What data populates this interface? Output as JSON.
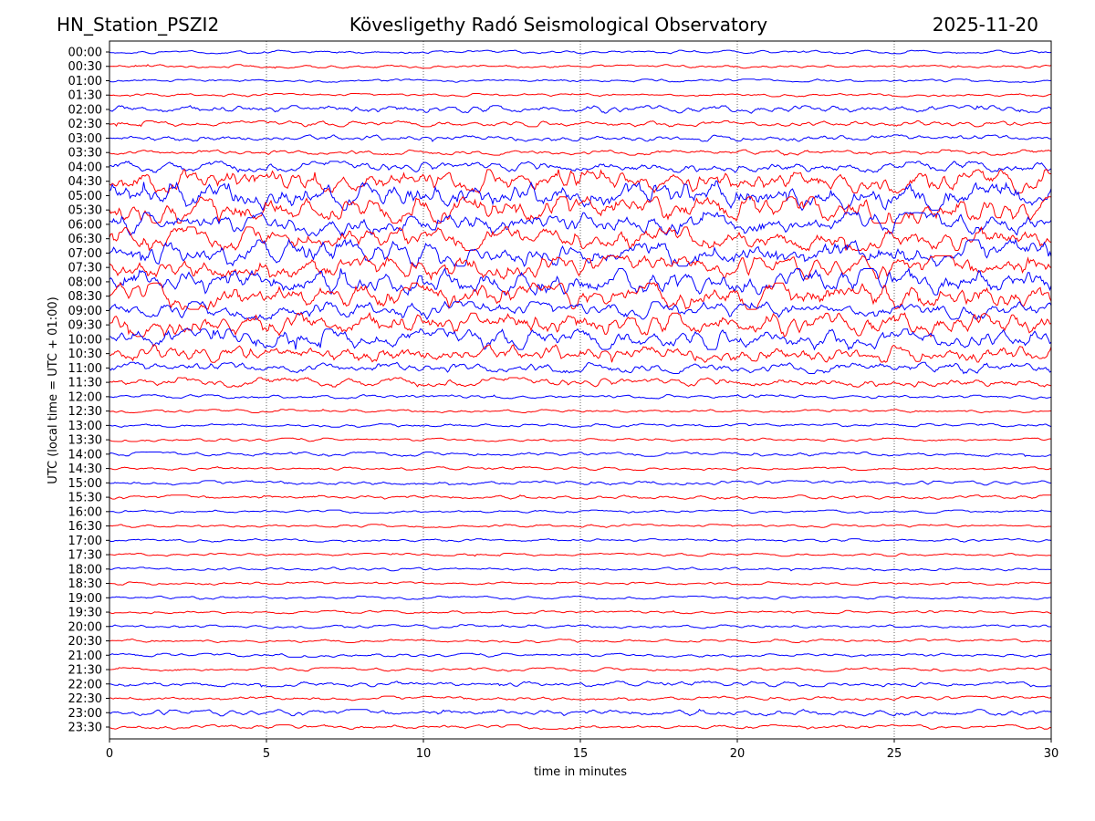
{
  "header": {
    "station": "HN_Station_PSZI2",
    "observatory": "Kövesligethy Radó Seismological Observatory",
    "date": "2025-11-20"
  },
  "chart_data": {
    "type": "line",
    "title": "Kövesligethy Radó Seismological Observatory",
    "xlabel": "time in minutes",
    "ylabel": "UTC (local time = UTC + 01:00)",
    "xlim": [
      0,
      30
    ],
    "xticks": [
      "0",
      "5",
      "10",
      "15",
      "20",
      "25",
      "30"
    ],
    "grid": "vertical dotted at 5-minute intervals",
    "series_colors": [
      "#0000ff",
      "#ff0000"
    ],
    "rows": [
      "00:00",
      "00:30",
      "01:00",
      "01:30",
      "02:00",
      "02:30",
      "03:00",
      "03:30",
      "04:00",
      "04:30",
      "05:00",
      "05:30",
      "06:00",
      "06:30",
      "07:00",
      "07:30",
      "08:00",
      "08:30",
      "09:00",
      "09:30",
      "10:00",
      "10:30",
      "11:00",
      "11:30",
      "12:00",
      "12:30",
      "13:00",
      "13:30",
      "14:00",
      "14:30",
      "15:00",
      "15:30",
      "16:00",
      "16:30",
      "17:00",
      "17:30",
      "18:00",
      "18:30",
      "19:00",
      "19:30",
      "20:00",
      "20:30",
      "21:00",
      "21:30",
      "22:00",
      "22:30",
      "23:00",
      "23:30"
    ],
    "relative_amplitude": [
      1.2,
      1.2,
      1.1,
      1.1,
      2.6,
      2.0,
      2.2,
      1.8,
      3.8,
      8,
      10,
      9,
      8,
      8,
      9,
      8,
      9,
      9,
      6,
      8,
      7,
      6,
      3.8,
      3.2,
      1.4,
      1.2,
      1.2,
      1.2,
      1.5,
      1.2,
      1.5,
      1.4,
      1.1,
      1.1,
      1.1,
      1.0,
      1.2,
      1.1,
      1.1,
      1.1,
      1.3,
      1.2,
      1.3,
      1.3,
      1.9,
      1.5,
      2.2,
      1.5
    ]
  }
}
